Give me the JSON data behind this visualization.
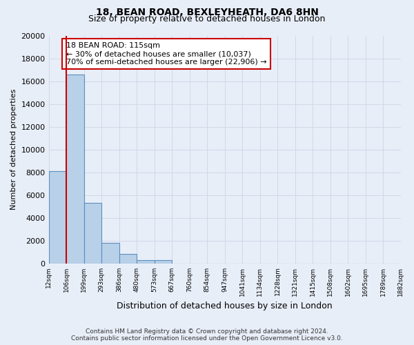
{
  "title_line1": "18, BEAN ROAD, BEXLEYHEATH, DA6 8HN",
  "title_line2": "Size of property relative to detached houses in London",
  "xlabel": "Distribution of detached houses by size in London",
  "ylabel": "Number of detached properties",
  "bin_labels": [
    "12sqm",
    "106sqm",
    "199sqm",
    "293sqm",
    "386sqm",
    "480sqm",
    "573sqm",
    "667sqm",
    "760sqm",
    "854sqm",
    "947sqm",
    "1041sqm",
    "1134sqm",
    "1228sqm",
    "1321sqm",
    "1415sqm",
    "1508sqm",
    "1602sqm",
    "1695sqm",
    "1789sqm",
    "1882sqm"
  ],
  "bar_values": [
    8100,
    16600,
    5300,
    1800,
    800,
    300,
    300,
    0,
    0,
    0,
    0,
    0,
    0,
    0,
    0,
    0,
    0,
    0,
    0,
    0
  ],
  "bar_color": "#b8d0e8",
  "bar_edge_color": "#5a8fc0",
  "grid_color": "#d0d8e8",
  "background_color": "#e8eef8",
  "vline_x": 0.5,
  "vline_color": "#cc0000",
  "annotation_title": "18 BEAN ROAD: 115sqm",
  "annotation_line1": "← 30% of detached houses are smaller (10,037)",
  "annotation_line2": "70% of semi-detached houses are larger (22,906) →",
  "annotation_box_color": "#ffffff",
  "annotation_box_edge": "#cc0000",
  "ylim": [
    0,
    20000
  ],
  "yticks": [
    0,
    2000,
    4000,
    6000,
    8000,
    10000,
    12000,
    14000,
    16000,
    18000,
    20000
  ],
  "footer_line1": "Contains HM Land Registry data © Crown copyright and database right 2024.",
  "footer_line2": "Contains public sector information licensed under the Open Government Licence v3.0."
}
